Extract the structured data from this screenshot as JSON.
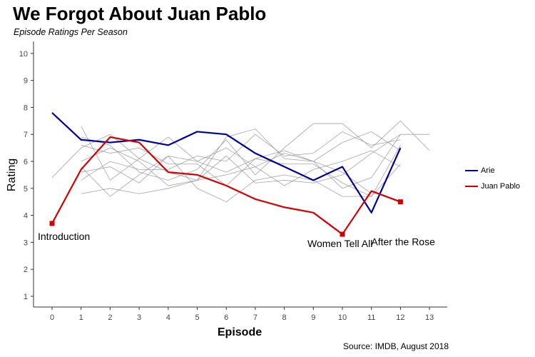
{
  "title": "We Forgot About Juan Pablo",
  "subtitle": "Episode Ratings Per Season",
  "source": "Source: IMDB, August 2018",
  "chart_data": {
    "type": "line",
    "xlabel": "Episode",
    "ylabel": "Rating",
    "xlim": [
      0,
      13
    ],
    "ylim": [
      1,
      10
    ],
    "x_ticks": [
      0,
      1,
      2,
      3,
      4,
      5,
      6,
      7,
      8,
      9,
      10,
      11,
      12,
      13
    ],
    "y_ticks": [
      1,
      2,
      3,
      4,
      5,
      6,
      7,
      8,
      9,
      10
    ],
    "grid": false,
    "legend_position": "right",
    "highlight_series": [
      {
        "name": "Arie",
        "color": "#00009c",
        "x": [
          0,
          1,
          2,
          3,
          4,
          5,
          6,
          7,
          8,
          9,
          10,
          11,
          12
        ],
        "values": [
          7.8,
          6.8,
          6.7,
          6.8,
          6.6,
          7.1,
          7.0,
          6.3,
          5.8,
          5.3,
          5.8,
          4.1,
          6.5
        ]
      },
      {
        "name": "Juan Pablo",
        "color": "#d40000",
        "x": [
          0,
          1,
          2,
          3,
          4,
          5,
          6,
          7,
          8,
          9,
          10,
          11,
          12
        ],
        "values": [
          3.7,
          5.7,
          6.9,
          6.7,
          5.6,
          5.5,
          5.1,
          4.6,
          4.3,
          4.1,
          3.3,
          4.9,
          4.5
        ]
      }
    ],
    "background_series": [
      {
        "x": [
          1,
          2,
          3,
          4,
          5,
          6,
          7,
          8,
          9,
          10,
          11,
          12,
          13
        ],
        "values": [
          7.3,
          5.3,
          6.1,
          5.6,
          5.3,
          6.9,
          7.2,
          6.1,
          6.0,
          5.0,
          5.4,
          7.0,
          7.0
        ]
      },
      {
        "x": [
          1,
          2,
          3,
          4,
          5,
          6,
          7,
          8,
          9,
          10,
          11,
          12,
          13
        ],
        "values": [
          6.9,
          6.6,
          5.6,
          5.3,
          5.7,
          6.8,
          5.5,
          6.5,
          7.4,
          7.4,
          6.5,
          7.5,
          6.4
        ]
      },
      {
        "x": [
          1,
          2,
          3,
          4,
          5,
          6,
          7,
          8,
          9,
          10,
          11,
          12
        ],
        "values": [
          4.8,
          5.0,
          4.8,
          5.0,
          5.3,
          5.5,
          5.8,
          5.1,
          5.7,
          6.0,
          6.4,
          5.8
        ]
      },
      {
        "x": [
          0,
          1,
          2,
          3,
          4,
          5,
          6,
          7,
          8,
          9,
          10,
          11
        ],
        "values": [
          5.4,
          6.5,
          7.0,
          6.1,
          6.9,
          6.0,
          6.5,
          5.8,
          6.3,
          6.0,
          5.6,
          4.8
        ]
      },
      {
        "x": [
          1,
          2,
          3,
          4,
          5,
          6,
          7,
          8,
          9,
          10,
          11,
          12
        ],
        "values": [
          5.8,
          4.7,
          5.5,
          6.2,
          5.0,
          4.5,
          5.3,
          5.5,
          5.3,
          4.7,
          4.7,
          5.9
        ]
      },
      {
        "x": [
          1,
          2,
          3,
          4,
          5,
          6,
          7,
          8,
          9,
          10,
          11,
          12
        ],
        "values": [
          6.0,
          6.5,
          6.0,
          5.1,
          5.3,
          6.2,
          5.2,
          5.3,
          5.2,
          5.5,
          6.3,
          7.0
        ]
      },
      {
        "x": [
          1,
          2,
          3,
          4,
          5,
          6,
          7,
          8,
          9,
          10,
          11,
          12
        ],
        "values": [
          5.3,
          6.0,
          5.7,
          5.7,
          6.2,
          6.0,
          7.0,
          6.2,
          6.3,
          7.1,
          6.6,
          6.8
        ]
      },
      {
        "x": [
          1,
          2,
          3,
          4,
          5,
          6,
          7,
          8,
          9,
          10,
          11,
          12
        ],
        "values": [
          5.6,
          5.8,
          5.2,
          6.2,
          6.0,
          5.6,
          6.1,
          5.9,
          5.9,
          5.2,
          4.7,
          6.6
        ]
      },
      {
        "x": [
          1,
          2,
          3,
          4,
          5,
          6,
          7,
          8,
          9,
          10,
          11,
          12
        ],
        "values": [
          6.6,
          6.3,
          6.5,
          5.9,
          5.9,
          5.1,
          6.1,
          6.4,
          6.0,
          6.7,
          7.1,
          6.4
        ]
      }
    ],
    "annotations": [
      {
        "text": "Introduction",
        "x": 0,
        "y": 3.7
      },
      {
        "text": "Women Tell All",
        "x": 10,
        "y": 3.3
      },
      {
        "text": "After the Rose",
        "x": 12,
        "y": 4.5
      }
    ]
  }
}
